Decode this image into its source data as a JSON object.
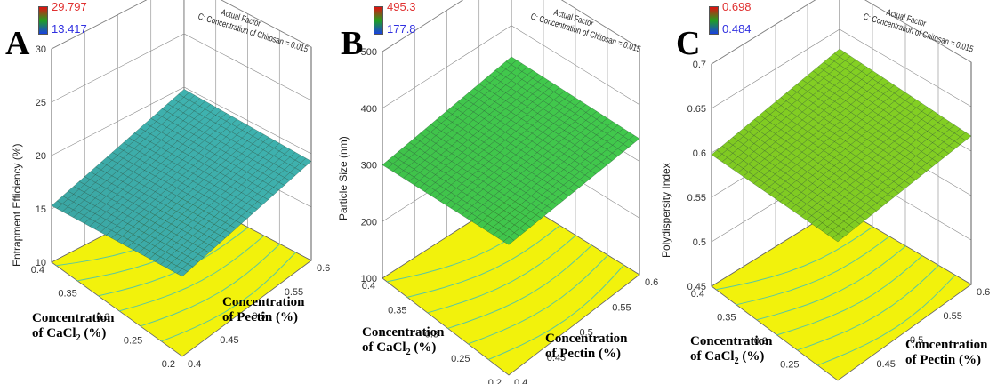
{
  "chart_data": [
    {
      "type": "surface3d",
      "panel_label": "A",
      "legend": {
        "max": "29.797",
        "min": "13.417",
        "max_color": "#ff2a2a",
        "min_color": "#2a2aff"
      },
      "actual_factor": {
        "line1": "Actual Factor",
        "line2": "C: Concentration of Chitosan = 0.015"
      },
      "zlabel": "Entrapment Efficiency (%)",
      "z_ticks": [
        "10",
        "15",
        "20",
        "25",
        "30"
      ],
      "zlim": [
        10,
        30
      ],
      "pectin_ticks": [
        "0.4",
        "0.45",
        "0.5",
        "0.55",
        "0.6"
      ],
      "cacl2_ticks": [
        "0.2",
        "0.25",
        "0.3",
        "0.35",
        "0.4"
      ],
      "pectin_title": [
        "Concentration",
        "of Pectin (%)"
      ],
      "cacl2_title": [
        "Concentration",
        "of CaCl",
        "2",
        " (%)"
      ],
      "surface_corners": {
        "pectin0.4_cacl0.4": 15.3,
        "pectin0.6_cacl0.4": 19.8,
        "pectin0.6_cacl0.2": 19.3,
        "pectin0.4_cacl0.2": 17.5
      },
      "surface_color": "#3fb3b0"
    },
    {
      "type": "surface3d",
      "panel_label": "B",
      "legend": {
        "max": "495.3",
        "min": "177.8",
        "max_color": "#ff2a2a",
        "min_color": "#2a2aff"
      },
      "actual_factor": {
        "line1": "Actual Factor",
        "line2": "C: Concentration of Chitosan = 0.015"
      },
      "zlabel": "Particle Size (nm)",
      "z_ticks": [
        "100",
        "200",
        "300",
        "400",
        "500"
      ],
      "zlim": [
        100,
        500
      ],
      "pectin_ticks": [
        "0.4",
        "0.45",
        "0.5",
        "0.55",
        "0.6"
      ],
      "cacl2_ticks": [
        "0.2",
        "0.25",
        "0.3",
        "0.35",
        "0.4"
      ],
      "pectin_title": [
        "Concentration",
        "of Pectin (%)"
      ],
      "cacl2_title": [
        "Concentration",
        "of CaCl",
        "2",
        " (%)"
      ],
      "surface_corners": {
        "pectin0.4_cacl0.4": 300,
        "pectin0.6_cacl0.4": 345,
        "pectin0.6_cacl0.2": 340,
        "pectin0.4_cacl0.2": 330
      },
      "surface_color": "#3fc24a"
    },
    {
      "type": "surface3d",
      "panel_label": "C",
      "legend": {
        "max": "0.698",
        "min": "0.484",
        "max_color": "#ff2a2a",
        "min_color": "#2a2aff"
      },
      "actual_factor": {
        "line1": "Actual Factor",
        "line2": "C: Concentration of Chitosan = 0.015"
      },
      "zlabel": "Polydispersity Index",
      "z_ticks": [
        "0.45",
        "0.5",
        "0.55",
        "0.6",
        "0.65",
        "0.7"
      ],
      "zlim": [
        0.45,
        0.7
      ],
      "pectin_ticks": [
        "0.4",
        "0.45",
        "0.5",
        "0.55",
        "0.6"
      ],
      "cacl2_ticks": [
        "0.2",
        "0.25",
        "0.3",
        "0.35",
        "0.4"
      ],
      "pectin_title": [
        "Concentration",
        "of Pectin (%)"
      ],
      "cacl2_title": [
        "Concentration",
        "of CaCl",
        "2",
        " (%)"
      ],
      "surface_corners": {
        "pectin0.4_cacl0.4": 0.598,
        "pectin0.6_cacl0.4": 0.628,
        "pectin0.6_cacl0.2": 0.617,
        "pectin0.4_cacl0.2": 0.606
      },
      "surface_color": "#7cc421"
    }
  ]
}
